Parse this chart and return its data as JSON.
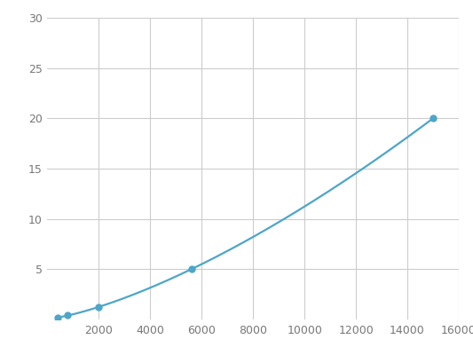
{
  "x": [
    400,
    800,
    2000,
    5600,
    15000
  ],
  "y": [
    0.2,
    0.4,
    1.25,
    5.0,
    20.0
  ],
  "line_color": "#4da6c8",
  "marker_color": "#4da6c8",
  "marker_size": 5,
  "line_width": 1.6,
  "xlim": [
    0,
    16000
  ],
  "ylim": [
    0,
    30
  ],
  "xticks": [
    2000,
    4000,
    6000,
    8000,
    10000,
    12000,
    14000,
    16000
  ],
  "yticks": [
    5,
    10,
    15,
    20,
    25,
    30
  ],
  "grid_color": "#cccccc",
  "background_color": "#ffffff",
  "tick_fontsize": 9
}
